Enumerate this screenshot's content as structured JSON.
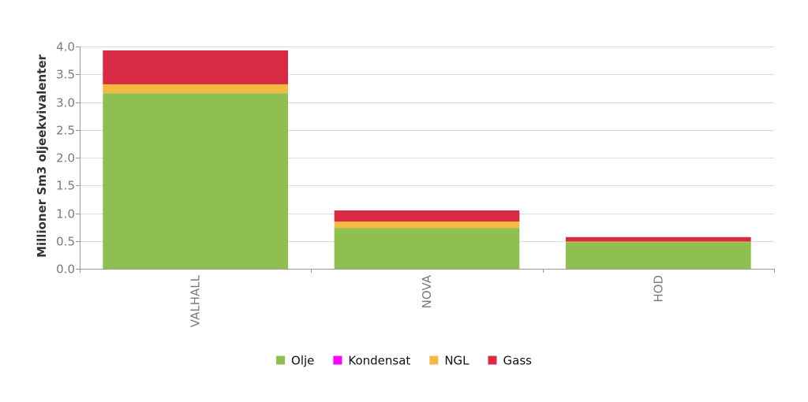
{
  "chart_data": {
    "type": "bar",
    "stacked": true,
    "title": "",
    "xlabel": "",
    "ylabel": "Millioner Sm3 oljeekvivalenter",
    "ylim": [
      0,
      4.0
    ],
    "yticks": [
      0.0,
      0.5,
      1.0,
      1.5,
      2.0,
      2.5,
      3.0,
      3.5,
      4.0
    ],
    "ytick_labels": [
      "0.0",
      "0.5",
      "1.0",
      "1.5",
      "2.0",
      "2.5",
      "3.0",
      "3.5",
      "4.0"
    ],
    "categories": [
      "VALHALL",
      "NOVA",
      "HOD"
    ],
    "series": [
      {
        "name": "Olje",
        "color": "#8fc04f",
        "values": [
          3.16,
          0.73,
          0.48
        ]
      },
      {
        "name": "Kondensat",
        "color": "#ff00ff",
        "values": [
          0.0,
          0.0,
          0.0
        ]
      },
      {
        "name": "NGL",
        "color": "#f4b940",
        "values": [
          0.16,
          0.12,
          0.01
        ]
      },
      {
        "name": "Gass",
        "color": "#d92a44",
        "values": [
          0.61,
          0.2,
          0.08
        ]
      }
    ],
    "grid": true,
    "legend_position": "bottom"
  }
}
